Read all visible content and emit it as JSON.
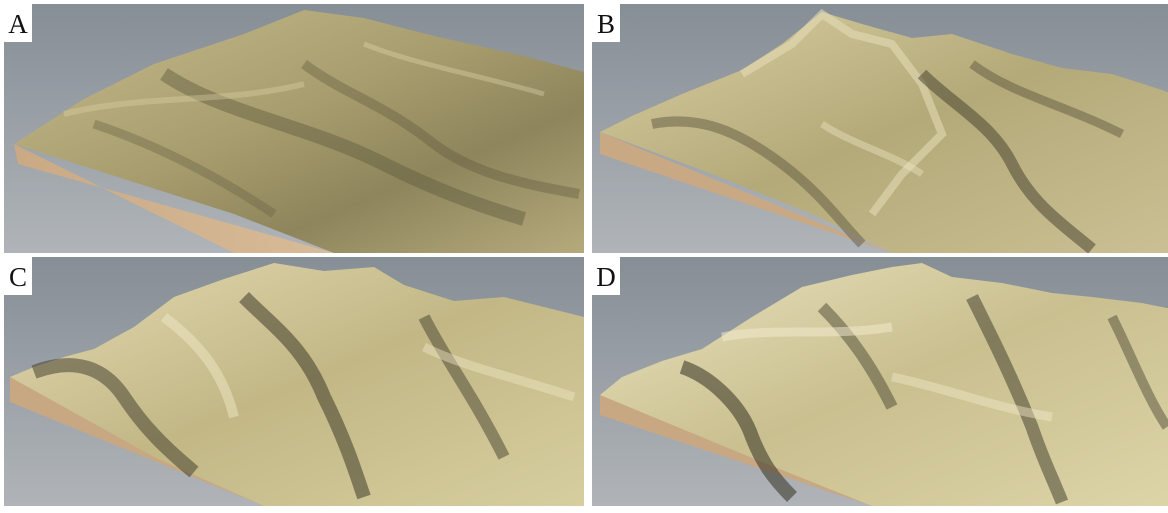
{
  "panels": [
    {
      "label": "A"
    },
    {
      "label": "B"
    },
    {
      "label": "C"
    },
    {
      "label": "D"
    }
  ],
  "colors": {
    "sky_top": "#7f8891",
    "sky_bottom": "#b3b7bb",
    "terrain_light": "#e8dfb8",
    "terrain_mid": "#b8ab78",
    "terrain_dark": "#4f4b35",
    "soil_side": "#c9aa86"
  }
}
